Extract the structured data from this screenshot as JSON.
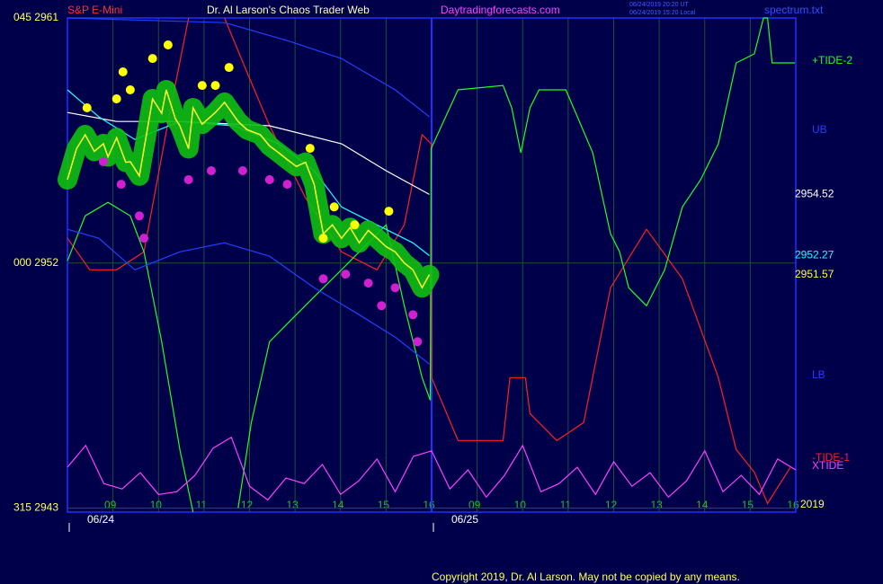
{
  "chart_data": {
    "type": "line",
    "title": "Dr. Al Larson's Chaos Trader Web",
    "instrument": "S&P E-Mini",
    "site": "Daytradingforecasts.com",
    "timestamps": [
      "06/24/2019 20:20 UT",
      "06/24/2019 15:20 Local"
    ],
    "file": "spectrum.txt",
    "year": "2019",
    "copyright": "Copyright 2019, Dr. Al Larson. May not be copied by any means.",
    "xlim": [
      0,
      16
    ],
    "ylim": [
      2942.85,
      2961
    ],
    "yticks": [
      {
        "value": 2961,
        "label": "045  2961"
      },
      {
        "value": 2952,
        "label": "000  2952"
      },
      {
        "value": 2943,
        "label": "315  2943"
      }
    ],
    "xticks": [
      {
        "value": 1,
        "label": "09"
      },
      {
        "value": 2,
        "label": "10"
      },
      {
        "value": 3,
        "label": "11"
      },
      {
        "value": 4,
        "label": "12"
      },
      {
        "value": 5,
        "label": "13"
      },
      {
        "value": 6,
        "label": "14"
      },
      {
        "value": 7,
        "label": "15"
      },
      {
        "value": 8,
        "label": "16"
      },
      {
        "value": 9,
        "label": "09"
      },
      {
        "value": 10,
        "label": "10"
      },
      {
        "value": 11,
        "label": "11"
      },
      {
        "value": 12,
        "label": "12"
      },
      {
        "value": 13,
        "label": "13"
      },
      {
        "value": 14,
        "label": "14"
      },
      {
        "value": 15,
        "label": "15"
      },
      {
        "value": 16,
        "label": "16"
      }
    ],
    "date_ticks": [
      {
        "value": 0,
        "label": "06/24"
      },
      {
        "value": 8,
        "label": "06/25"
      }
    ],
    "grid": true,
    "series": [
      {
        "name": "-TIDE-1",
        "color": "#ff2020",
        "x": [
          0,
          0.49,
          1.08,
          1.68,
          2.27,
          2.66,
          3.0,
          3.45,
          3.94,
          4.44,
          5.23,
          6.02,
          6.8,
          7.4,
          7.79,
          7.99,
          8.0,
          8.58,
          9.57,
          9.72,
          10.06,
          10.16,
          10.75,
          11.34,
          11.93,
          12.72,
          13.51,
          14.3,
          14.69,
          15.09,
          15.38,
          15.88
        ],
        "values": [
          2952.91,
          2951.75,
          2951.75,
          2952.41,
          2957.7,
          2961,
          null,
          2961,
          2959.02,
          2957.04,
          2954.39,
          2952.41,
          2951.75,
          2953.4,
          2956.71,
          2956.38,
          2947.79,
          2945.48,
          2945.48,
          2947.79,
          2947.79,
          2946.47,
          2945.48,
          2946.14,
          2951.09,
          2953.24,
          2951.42,
          2947.79,
          2945.15,
          2944.32,
          2943.17,
          2944.49
        ]
      },
      {
        "name": "+TIDE-2",
        "color": "#20ff20",
        "x": [
          0,
          0.39,
          0.89,
          1.38,
          1.68,
          2.07,
          2.47,
          2.76,
          3.2,
          3.75,
          4.04,
          4.44,
          4.83,
          5.42,
          6.02,
          6.41,
          7.0,
          7.4,
          7.79,
          7.97,
          7.99,
          8.58,
          9.57,
          9.76,
          9.96,
          10.16,
          10.36,
          10.95,
          11.54,
          11.93,
          12.13,
          12.33,
          12.72,
          13.12,
          13.51,
          13.91,
          14.3,
          14.69,
          15.09,
          15.29,
          15.38,
          15.48,
          15.98
        ],
        "values": [
          2952.08,
          2953.73,
          2954.23,
          2953.73,
          2952.41,
          2949.11,
          2945.15,
          2942.85,
          null,
          2943,
          2946.14,
          2949.11,
          2949.77,
          2950.76,
          2951.75,
          2952.41,
          2953.4,
          2950.43,
          2947.79,
          2946.96,
          2956.21,
          2958.36,
          2958.52,
          2957.7,
          2956.05,
          2957.7,
          2958.36,
          2958.36,
          2956.05,
          2953.07,
          2952.41,
          2951.09,
          2950.43,
          2951.75,
          2954.06,
          2955.06,
          2956.38,
          2959.35,
          2959.68,
          2961,
          2961,
          2959.35,
          2959.35
        ]
      },
      {
        "name": "UB",
        "color": "#2040ff",
        "x": [
          0,
          3.45,
          4.83,
          6.02,
          7.2,
          7.95
        ],
        "values": [
          2961,
          2960.83,
          2960.17,
          2959.51,
          2958.36,
          2957.37
        ]
      },
      {
        "name": "LB",
        "color": "#2040ff",
        "x": [
          0,
          0.69,
          1.48,
          2.47,
          3.45,
          4.44,
          5.42,
          6.41,
          7.2,
          7.95
        ],
        "values": [
          2953.24,
          2952.91,
          2951.75,
          2952.41,
          2952.74,
          2952.25,
          2951.09,
          2950.1,
          2949.28,
          2948.29
        ]
      },
      {
        "name": "XTIDE",
        "color": "#ff40ff",
        "x": [
          0,
          0.4,
          0.8,
          1.2,
          1.6,
          2,
          2.4,
          2.8,
          3.2,
          3.6,
          4,
          4.4,
          4.8,
          5.2,
          5.6,
          6,
          6.4,
          6.8,
          7.2,
          7.6,
          8,
          8.4,
          8.8,
          9.2,
          9.6,
          10,
          10.4,
          10.8,
          11.2,
          11.6,
          12,
          12.4,
          12.8,
          13.2,
          13.6,
          14,
          14.4,
          14.8,
          15.2,
          15.6,
          16
        ],
        "values": [
          2944.5,
          2945.3,
          2943.9,
          2943.7,
          2944.3,
          2943.5,
          2943.6,
          2944.2,
          2945.2,
          2945.6,
          2943.8,
          2943.3,
          2944.1,
          2943.9,
          2944.6,
          2943.5,
          2944,
          2944.8,
          2943.6,
          2944.9,
          2945.1,
          2943.7,
          2944.4,
          2943.4,
          2944.2,
          2945.3,
          2943.6,
          2943.9,
          2944.5,
          2943.5,
          2944.7,
          2943.8,
          2944.3,
          2943.4,
          2944,
          2945.1,
          2943.6,
          2944.2,
          2943.5,
          2944.8,
          2944.4
        ]
      },
      {
        "color": "#ffffff",
        "end_label": "2954.52",
        "x": [
          0,
          1.08,
          2.47,
          4.44,
          6.02,
          7.0,
          7.95
        ],
        "values": [
          2957.53,
          2957.2,
          2957.2,
          2957.04,
          2956.38,
          2955.39,
          2954.52
        ]
      },
      {
        "color": "#20ffff",
        "end_label": "2952.27",
        "x": [
          0,
          0.69,
          1.48,
          2.47,
          3.65,
          4.64,
          5.42,
          6.02,
          6.8,
          7.59,
          7.95
        ],
        "values": [
          2958.36,
          2957.37,
          2956.54,
          2957.2,
          2957.04,
          2956.38,
          2955.39,
          2954.06,
          2953.4,
          2952.74,
          2952.27
        ]
      },
      {
        "color": "#ffff30",
        "band_color": "#10c010",
        "end_label": "2951.57",
        "x": [
          0,
          0.2,
          0.39,
          0.59,
          0.79,
          0.89,
          1.08,
          1.28,
          1.38,
          1.58,
          1.87,
          2.07,
          2.17,
          2.37,
          2.47,
          2.66,
          2.76,
          2.96,
          3.25,
          3.45,
          3.75,
          3.94,
          4.24,
          4.44,
          4.64,
          4.83,
          5.03,
          5.23,
          5.42,
          5.62,
          5.82,
          6.02,
          6.21,
          6.41,
          6.61,
          6.8,
          7.0,
          7.2,
          7.4,
          7.59,
          7.79,
          7.95
        ],
        "values": [
          2955.06,
          2956.2,
          2956.71,
          2956.1,
          2956.38,
          2955.9,
          2956.6,
          2955.7,
          2955.72,
          2955.2,
          2958.03,
          2957.5,
          2958.36,
          2957.3,
          2957.04,
          2956.2,
          2957.7,
          2957.1,
          2957.53,
          2957.9,
          2957.2,
          2956.9,
          2956.71,
          2956.3,
          2956.05,
          2955.8,
          2955.55,
          2955.7,
          2954.89,
          2953.07,
          2953.4,
          2952.91,
          2953.3,
          2952.74,
          2953.2,
          2952.91,
          2952.6,
          2952.41,
          2952,
          2951.75,
          2951.09,
          2951.57
        ]
      },
      {
        "color": "#ffff00",
        "markers": true,
        "x": [
          0.43,
          1.08,
          1.22,
          1.38,
          1.87,
          2.21,
          2.96,
          3.25,
          3.55,
          5.33,
          5.62,
          5.86,
          6.31,
          7.06
        ],
        "values": [
          2957.7,
          2958.03,
          2959.02,
          2958.36,
          2959.51,
          2960.01,
          2958.52,
          2958.52,
          2959.18,
          2956.21,
          2952.91,
          2954.06,
          2953.4,
          2953.9
        ]
      },
      {
        "color": "#d020d0",
        "markers": true,
        "x": [
          0.79,
          1.18,
          1.58,
          1.68,
          2.66,
          3.16,
          3.85,
          4.44,
          4.83,
          5.62,
          6.11,
          6.61,
          6.9,
          7.2,
          7.59,
          7.69
        ],
        "values": [
          2955.72,
          2954.89,
          2953.73,
          2952.91,
          2955.06,
          2955.39,
          2955.39,
          2955.06,
          2954.89,
          2951.42,
          2951.59,
          2951.26,
          2950.43,
          2951.09,
          2950.1,
          2949.11
        ]
      }
    ]
  }
}
